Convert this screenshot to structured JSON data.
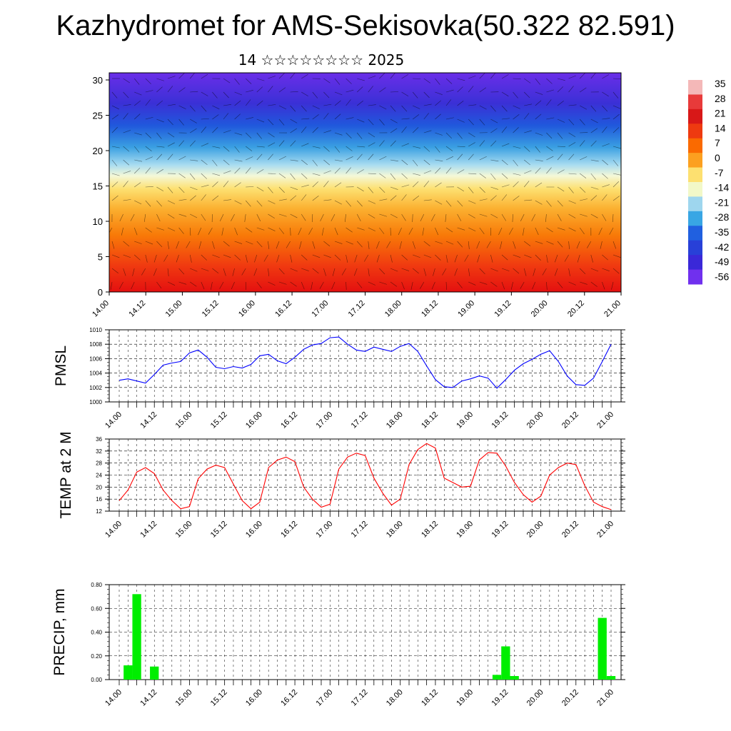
{
  "title": "Kazhydromet for AMS-Sekisovka(50.322 82.591)",
  "subtitle": "14 ☆☆☆☆☆☆☆☆ 2025",
  "colors": {
    "pmsl_line": "#0000ff",
    "temp_line": "#ff0000",
    "precip_bar": "#00ee00",
    "axis": "#000000"
  },
  "chart_data": [
    {
      "type": "heatmap",
      "ylim": [
        0,
        30
      ],
      "yticks": [
        "0",
        "5",
        "10",
        "15",
        "20",
        "25",
        "30"
      ],
      "xticks": [
        "14.00",
        "14.12",
        "15.00",
        "15.12",
        "16.00",
        "16.12",
        "17.00",
        "17.12",
        "18.00",
        "18.12",
        "19.00",
        "19.12",
        "20.00",
        "20.12",
        "21.00"
      ],
      "colorbar": {
        "labels": [
          "35",
          "28",
          "21",
          "14",
          "7",
          "0",
          "-7",
          "-14",
          "-21",
          "-28",
          "-35",
          "-42",
          "-49",
          "-56"
        ],
        "colors": [
          "#f4b8b8",
          "#e83a3a",
          "#d81818",
          "#ee3a10",
          "#fa6a00",
          "#fca020",
          "#fde070",
          "#f2f8c8",
          "#9ed6ee",
          "#38a6e4",
          "#2060e0",
          "#2840d8",
          "#3a28d8",
          "#7030ee"
        ]
      }
    },
    {
      "type": "line",
      "ylabel": "PMSL",
      "ylim": [
        1000,
        1010
      ],
      "yticks": [
        "1000",
        "1002",
        "1004",
        "1006",
        "1008",
        "1010"
      ],
      "xticks": [
        "14.00",
        "14.12",
        "15.00",
        "15.12",
        "16.00",
        "16.12",
        "17.00",
        "17.12",
        "18.00",
        "18.12",
        "19.00",
        "19.12",
        "20.00",
        "20.12",
        "21.00"
      ],
      "series": [
        {
          "values": [
            1003.0,
            1003.2,
            1002.9,
            1002.6,
            1003.8,
            1005.1,
            1005.4,
            1005.6,
            1006.8,
            1007.2,
            1006.2,
            1004.8,
            1004.6,
            1004.9,
            1004.7,
            1005.2,
            1006.4,
            1006.6,
            1005.7,
            1005.3,
            1006.2,
            1007.3,
            1007.9,
            1008.1,
            1008.9,
            1009.0,
            1008.0,
            1007.2,
            1007.0,
            1007.6,
            1007.3,
            1007.0,
            1007.7,
            1008.1,
            1007.0,
            1005.0,
            1003.1,
            1002.1,
            1002.0,
            1002.9,
            1003.2,
            1003.6,
            1003.3,
            1001.9,
            1003.1,
            1004.4,
            1005.3,
            1005.9,
            1006.6,
            1007.1,
            1005.6,
            1003.6,
            1002.4,
            1002.3,
            1003.3,
            1005.6,
            1008.0
          ]
        }
      ]
    },
    {
      "type": "line",
      "ylabel": "TEMP at 2 M",
      "ylim": [
        12,
        36
      ],
      "yticks": [
        "12",
        "16",
        "20",
        "24",
        "28",
        "32",
        "36"
      ],
      "xticks": [
        "14.00",
        "14.12",
        "15.00",
        "15.12",
        "16.00",
        "16.12",
        "17.00",
        "17.12",
        "18.00",
        "18.12",
        "19.00",
        "19.12",
        "20.00",
        "20.12",
        "21.00"
      ],
      "series": [
        {
          "values": [
            15.5,
            19.0,
            25.0,
            26.5,
            24.5,
            19.0,
            15.5,
            12.8,
            13.5,
            22.8,
            26.0,
            27.3,
            26.5,
            21.0,
            15.5,
            12.8,
            15.0,
            26.5,
            29.0,
            30.0,
            28.5,
            20.0,
            16.0,
            13.3,
            14.3,
            26.0,
            30.0,
            31.3,
            30.5,
            23.0,
            18.0,
            14.0,
            16.0,
            27.5,
            32.5,
            34.5,
            33.0,
            23.0,
            21.5,
            20.0,
            20.3,
            29.0,
            31.5,
            31.3,
            27.0,
            21.5,
            17.5,
            15.0,
            17.0,
            24.0,
            26.5,
            28.0,
            27.5,
            20.5,
            15.0,
            13.5,
            12.5
          ]
        }
      ]
    },
    {
      "type": "bar",
      "ylabel": "PRECIP, mm",
      "ylim": [
        0,
        0.8
      ],
      "yticks": [
        "0.00",
        "0.20",
        "0.40",
        "0.60",
        "0.80"
      ],
      "xticks": [
        "14.00",
        "14.12",
        "15.00",
        "15.12",
        "16.00",
        "16.12",
        "17.00",
        "17.12",
        "18.00",
        "18.12",
        "19.00",
        "19.12",
        "20.00",
        "20.12",
        "21.00"
      ],
      "bars": [
        {
          "index": 1,
          "value": 0.12
        },
        {
          "index": 2,
          "value": 0.72
        },
        {
          "index": 4,
          "value": 0.11
        },
        {
          "index": 43,
          "value": 0.04
        },
        {
          "index": 44,
          "value": 0.28
        },
        {
          "index": 45,
          "value": 0.03
        },
        {
          "index": 55,
          "value": 0.52
        },
        {
          "index": 56,
          "value": 0.03
        }
      ]
    }
  ]
}
